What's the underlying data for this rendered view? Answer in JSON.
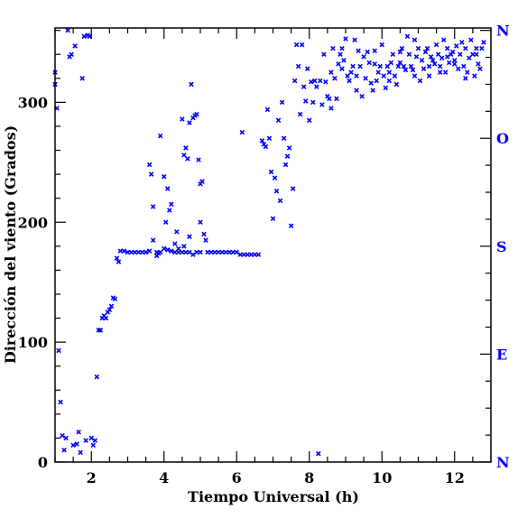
{
  "colors": {
    "axis": "#000000",
    "points": "#0000ff",
    "compass": "#0000ff"
  },
  "chart_data": {
    "type": "scatter",
    "title": "",
    "xlabel": "Tiempo Universal (h)",
    "ylabel": "Dirección del viento (Grados)",
    "xlim": [
      1,
      13
    ],
    "ylim": [
      0,
      362
    ],
    "marker": "x",
    "grid": false,
    "x_ticks": [
      {
        "value": 2,
        "label": "2"
      },
      {
        "value": 4,
        "label": "4"
      },
      {
        "value": 6,
        "label": "6"
      },
      {
        "value": 8,
        "label": "8"
      },
      {
        "value": 10,
        "label": "10"
      },
      {
        "value": 12,
        "label": "12"
      }
    ],
    "y_ticks": [
      {
        "value": 0,
        "label": "0"
      },
      {
        "value": 100,
        "label": "100"
      },
      {
        "value": 200,
        "label": "200"
      },
      {
        "value": 300,
        "label": "300"
      }
    ],
    "compass_labels": [
      {
        "value": 0,
        "label": "N"
      },
      {
        "value": 90,
        "label": "E"
      },
      {
        "value": 180,
        "label": "S"
      },
      {
        "value": 270,
        "label": "O"
      },
      {
        "value": 360,
        "label": "N"
      }
    ],
    "points": [
      [
        1.0,
        325
      ],
      [
        1.0,
        315
      ],
      [
        1.05,
        295
      ],
      [
        1.1,
        93
      ],
      [
        1.15,
        50
      ],
      [
        1.2,
        22
      ],
      [
        1.25,
        10
      ],
      [
        1.3,
        20
      ],
      [
        1.35,
        360
      ],
      [
        1.4,
        338
      ],
      [
        1.45,
        340
      ],
      [
        1.5,
        14
      ],
      [
        1.55,
        347
      ],
      [
        1.6,
        15
      ],
      [
        1.65,
        25
      ],
      [
        1.7,
        8
      ],
      [
        1.75,
        320
      ],
      [
        1.8,
        355
      ],
      [
        1.85,
        18
      ],
      [
        1.9,
        356
      ],
      [
        1.95,
        355
      ],
      [
        2.0,
        20
      ],
      [
        2.05,
        14
      ],
      [
        2.1,
        18
      ],
      [
        2.15,
        71
      ],
      [
        2.2,
        110
      ],
      [
        2.25,
        110
      ],
      [
        2.3,
        120
      ],
      [
        2.35,
        122
      ],
      [
        2.4,
        120
      ],
      [
        2.45,
        125
      ],
      [
        2.5,
        127
      ],
      [
        2.55,
        130
      ],
      [
        2.6,
        137
      ],
      [
        2.65,
        136
      ],
      [
        2.7,
        170
      ],
      [
        2.75,
        167
      ],
      [
        2.8,
        176
      ],
      [
        2.9,
        176
      ],
      [
        3.0,
        175
      ],
      [
        3.1,
        175
      ],
      [
        3.2,
        175
      ],
      [
        3.3,
        175
      ],
      [
        3.4,
        175
      ],
      [
        3.5,
        175
      ],
      [
        3.6,
        176
      ],
      [
        3.7,
        185
      ],
      [
        3.8,
        175
      ],
      [
        3.9,
        175
      ],
      [
        4.0,
        178
      ],
      [
        4.1,
        177
      ],
      [
        4.2,
        176
      ],
      [
        4.3,
        175
      ],
      [
        4.4,
        175
      ],
      [
        4.5,
        175
      ],
      [
        4.6,
        175
      ],
      [
        4.7,
        175
      ],
      [
        4.8,
        173
      ],
      [
        4.9,
        175
      ],
      [
        5.0,
        175
      ],
      [
        5.2,
        175
      ],
      [
        5.3,
        175
      ],
      [
        5.4,
        175
      ],
      [
        5.5,
        175
      ],
      [
        5.6,
        175
      ],
      [
        5.7,
        175
      ],
      [
        5.8,
        175
      ],
      [
        5.9,
        175
      ],
      [
        6.0,
        175
      ],
      [
        6.1,
        173
      ],
      [
        6.2,
        173
      ],
      [
        6.3,
        173
      ],
      [
        6.4,
        173
      ],
      [
        6.5,
        173
      ],
      [
        6.6,
        173
      ],
      [
        3.6,
        248
      ],
      [
        3.65,
        240
      ],
      [
        3.7,
        213
      ],
      [
        3.8,
        172
      ],
      [
        3.85,
        174
      ],
      [
        3.9,
        272
      ],
      [
        4.0,
        238
      ],
      [
        4.05,
        200
      ],
      [
        4.1,
        228
      ],
      [
        4.15,
        210
      ],
      [
        4.2,
        215
      ],
      [
        4.3,
        182
      ],
      [
        4.35,
        192
      ],
      [
        4.4,
        178
      ],
      [
        4.5,
        286
      ],
      [
        4.55,
        256
      ],
      [
        4.6,
        262
      ],
      [
        4.65,
        253
      ],
      [
        4.7,
        283
      ],
      [
        4.75,
        315
      ],
      [
        4.8,
        287
      ],
      [
        4.85,
        289
      ],
      [
        4.9,
        290
      ],
      [
        4.95,
        252
      ],
      [
        5.0,
        232
      ],
      [
        5.05,
        234
      ],
      [
        5.1,
        190
      ],
      [
        5.15,
        185
      ],
      [
        4.55,
        180
      ],
      [
        4.7,
        188
      ],
      [
        5.0,
        200
      ],
      [
        6.15,
        275
      ],
      [
        6.7,
        268
      ],
      [
        6.75,
        265
      ],
      [
        6.8,
        263
      ],
      [
        6.85,
        294
      ],
      [
        6.9,
        270
      ],
      [
        6.95,
        242
      ],
      [
        7.0,
        203
      ],
      [
        7.05,
        237
      ],
      [
        7.1,
        226
      ],
      [
        7.15,
        285
      ],
      [
        7.2,
        218
      ],
      [
        7.25,
        300
      ],
      [
        7.3,
        270
      ],
      [
        7.35,
        248
      ],
      [
        7.4,
        255
      ],
      [
        7.45,
        262
      ],
      [
        7.5,
        197
      ],
      [
        7.55,
        228
      ],
      [
        7.6,
        318
      ],
      [
        7.65,
        348
      ],
      [
        7.7,
        330
      ],
      [
        7.75,
        290
      ],
      [
        7.8,
        348
      ],
      [
        7.85,
        313
      ],
      [
        7.9,
        301
      ],
      [
        7.95,
        328
      ],
      [
        8.0,
        285
      ],
      [
        8.05,
        317
      ],
      [
        8.1,
        300
      ],
      [
        8.15,
        318
      ],
      [
        8.2,
        313
      ],
      [
        8.25,
        7
      ],
      [
        8.3,
        318
      ],
      [
        8.35,
        298
      ],
      [
        8.4,
        340
      ],
      [
        8.45,
        317
      ],
      [
        8.5,
        305
      ],
      [
        8.55,
        303
      ],
      [
        8.6,
        325
      ],
      [
        8.65,
        345
      ],
      [
        8.7,
        320
      ],
      [
        8.75,
        303
      ],
      [
        8.8,
        332
      ],
      [
        8.85,
        340
      ],
      [
        8.9,
        328
      ],
      [
        8.95,
        335
      ],
      [
        9.0,
        353
      ],
      [
        9.05,
        322
      ],
      [
        9.1,
        318
      ],
      [
        9.15,
        325
      ],
      [
        9.2,
        330
      ],
      [
        9.25,
        352
      ],
      [
        9.3,
        322
      ],
      [
        9.35,
        343
      ],
      [
        9.4,
        330
      ],
      [
        9.45,
        305
      ],
      [
        9.5,
        338
      ],
      [
        9.55,
        320
      ],
      [
        9.6,
        342
      ],
      [
        9.65,
        333
      ],
      [
        9.7,
        316
      ],
      [
        9.75,
        310
      ],
      [
        9.8,
        343
      ],
      [
        9.85,
        318
      ],
      [
        9.9,
        325
      ],
      [
        9.95,
        330
      ],
      [
        10.0,
        348
      ],
      [
        10.05,
        322
      ],
      [
        10.1,
        312
      ],
      [
        10.15,
        330
      ],
      [
        10.2,
        325
      ],
      [
        10.25,
        333
      ],
      [
        10.3,
        340
      ],
      [
        10.35,
        322
      ],
      [
        10.4,
        315
      ],
      [
        10.45,
        330
      ],
      [
        10.5,
        333
      ],
      [
        10.55,
        345
      ],
      [
        10.6,
        330
      ],
      [
        10.65,
        327
      ],
      [
        10.7,
        355
      ],
      [
        10.75,
        340
      ],
      [
        10.8,
        330
      ],
      [
        10.85,
        327
      ],
      [
        10.9,
        352
      ],
      [
        10.95,
        338
      ],
      [
        11.0,
        345
      ],
      [
        11.05,
        318
      ],
      [
        11.1,
        335
      ],
      [
        11.15,
        328
      ],
      [
        11.2,
        342
      ],
      [
        11.25,
        345
      ],
      [
        11.3,
        330
      ],
      [
        11.35,
        338
      ],
      [
        11.4,
        335
      ],
      [
        11.45,
        332
      ],
      [
        11.5,
        348
      ],
      [
        11.55,
        340
      ],
      [
        11.6,
        330
      ],
      [
        11.65,
        337
      ],
      [
        11.7,
        352
      ],
      [
        11.75,
        325
      ],
      [
        11.8,
        345
      ],
      [
        11.85,
        333
      ],
      [
        11.9,
        340
      ],
      [
        11.95,
        342
      ],
      [
        12.0,
        335
      ],
      [
        12.05,
        347
      ],
      [
        12.1,
        328
      ],
      [
        12.15,
        340
      ],
      [
        12.2,
        350
      ],
      [
        12.25,
        330
      ],
      [
        12.3,
        345
      ],
      [
        12.35,
        325
      ],
      [
        12.4,
        337
      ],
      [
        12.45,
        352
      ],
      [
        12.5,
        340
      ],
      [
        12.55,
        322
      ],
      [
        12.6,
        340
      ],
      [
        12.65,
        332
      ],
      [
        12.7,
        328
      ],
      [
        12.75,
        345
      ],
      [
        12.8,
        350
      ],
      [
        11.3,
        322
      ],
      [
        11.6,
        325
      ],
      [
        12.0,
        332
      ],
      [
        12.3,
        320
      ],
      [
        10.5,
        342
      ],
      [
        10.2,
        318
      ],
      [
        9.8,
        332
      ],
      [
        9.3,
        310
      ],
      [
        8.6,
        295
      ],
      [
        8.9,
        345
      ],
      [
        10.9,
        322
      ],
      [
        11.8,
        338
      ],
      [
        12.6,
        345
      ]
    ]
  }
}
